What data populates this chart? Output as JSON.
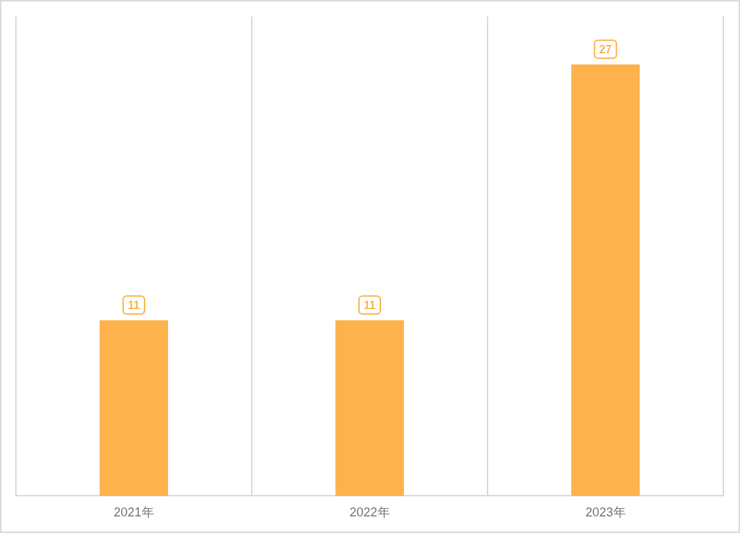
{
  "chart_data": {
    "type": "bar",
    "categories": [
      "2021年",
      "2022年",
      "2023年"
    ],
    "values": [
      11,
      11,
      27
    ],
    "color": "#fdb24b",
    "data_labels": true,
    "grid": "x"
  }
}
